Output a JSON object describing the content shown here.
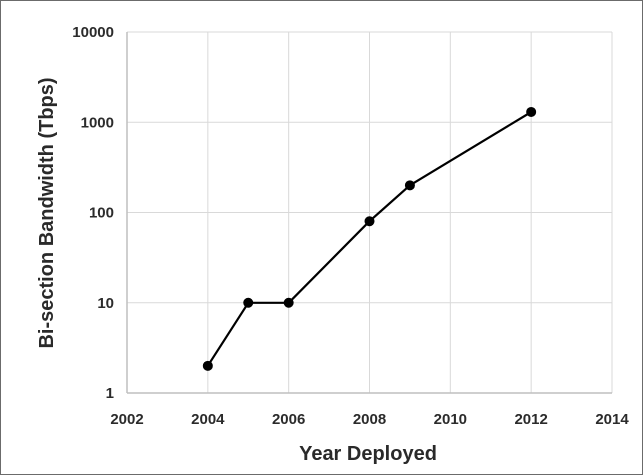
{
  "chart_data": {
    "type": "line",
    "title": "",
    "xlabel": "Year Deployed",
    "ylabel": "Bi-section Bandwidth (Tbps)",
    "xlim": [
      2002,
      2014
    ],
    "ylim": [
      1,
      10000
    ],
    "y_scale": "log",
    "grid": true,
    "x_ticks": [
      2002,
      2004,
      2006,
      2008,
      2010,
      2012,
      2014
    ],
    "x_tick_labels": [
      "2002",
      "2004",
      "2006",
      "2008",
      "2010",
      "2012",
      "2014"
    ],
    "y_ticks": [
      1,
      10,
      100,
      1000,
      10000
    ],
    "y_tick_labels": [
      "1",
      "10",
      "100",
      "1000",
      "10000"
    ],
    "series": [
      {
        "x": [
          2004,
          2005,
          2006,
          2008,
          2009,
          2012
        ],
        "y": [
          2,
          10,
          10,
          80,
          200,
          1300
        ]
      }
    ],
    "colors": {
      "line": "#000000",
      "marker": "#000000",
      "grid": "#d9d9d9",
      "axis": "#bfbfbf"
    }
  }
}
